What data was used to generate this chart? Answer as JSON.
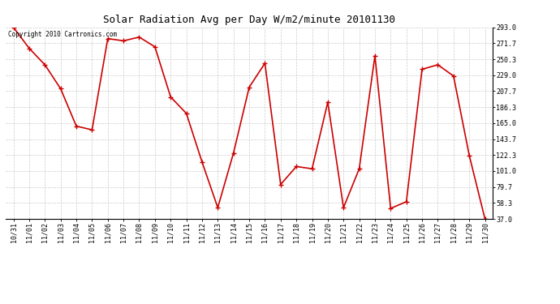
{
  "title": "Solar Radiation Avg per Day W/m2/minute 20101130",
  "copyright_text": "Copyright 2010 Cartronics.com",
  "x_labels": [
    "10/31",
    "11/01",
    "11/02",
    "11/03",
    "11/04",
    "11/05",
    "11/06",
    "11/07",
    "11/08",
    "11/09",
    "11/10",
    "11/11",
    "11/12",
    "11/13",
    "11/14",
    "11/15",
    "11/16",
    "11/17",
    "11/18",
    "11/19",
    "11/20",
    "11/21",
    "11/22",
    "11/23",
    "11/24",
    "11/25",
    "11/26",
    "11/27",
    "11/28",
    "11/29",
    "11/30"
  ],
  "y_values": [
    293.0,
    265.0,
    243.0,
    211.0,
    161.0,
    156.0,
    278.0,
    275.0,
    280.0,
    267.0,
    200.0,
    178.0,
    113.0,
    52.0,
    125.0,
    213.0,
    245.0,
    83.0,
    107.0,
    104.0,
    193.0,
    52.0,
    104.0,
    255.0,
    51.0,
    60.0,
    237.0,
    243.0,
    228.0,
    122.0,
    37.0
  ],
  "yticks": [
    293.0,
    271.7,
    250.3,
    229.0,
    207.7,
    186.3,
    165.0,
    143.7,
    122.3,
    101.0,
    79.7,
    58.3,
    37.0
  ],
  "ymin": 37.0,
  "ymax": 293.0,
  "line_color": "#cc0000",
  "marker": "+",
  "marker_size": 4,
  "bg_color": "#ffffff",
  "grid_color": "#cccccc",
  "title_fontsize": 9,
  "tick_fontsize": 6,
  "copyright_fontsize": 5.5
}
